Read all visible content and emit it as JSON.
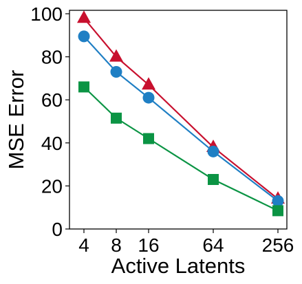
{
  "chart_data": {
    "type": "line",
    "title": "",
    "xlabel": "Active Latents",
    "ylabel": "MSE Error",
    "x": [
      4,
      8,
      16,
      64,
      256
    ],
    "x_tick_labels": [
      "4",
      "8",
      "16",
      "64",
      "256"
    ],
    "x_scale": "log2",
    "ylim": [
      0,
      100
    ],
    "y_ticks": [
      0,
      20,
      40,
      60,
      80,
      100
    ],
    "grid": false,
    "legend": "none",
    "series": [
      {
        "color": "#c8102e",
        "marker": "triangle",
        "values": [
          98,
          80,
          67,
          38,
          14
        ]
      },
      {
        "color": "#1f7fc4",
        "marker": "circle",
        "values": [
          89.5,
          73,
          61,
          36,
          13
        ]
      },
      {
        "color": "#0b9444",
        "marker": "square",
        "values": [
          66,
          51.5,
          42,
          23,
          8.5
        ]
      }
    ]
  }
}
